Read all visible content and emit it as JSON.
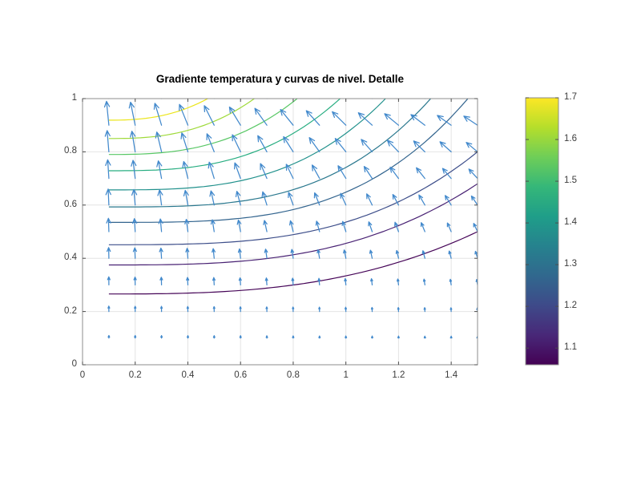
{
  "figure": {
    "background": "#ffffff"
  },
  "chart_data": {
    "type": "quiver+contour",
    "title": "Gradiente temperatura y curvas de nivel. Detalle",
    "x_range": [
      0,
      1.5
    ],
    "y_range": [
      0,
      1
    ],
    "x_tick_values": [
      0,
      0.2,
      0.4,
      0.6,
      0.8,
      1,
      1.2,
      1.4
    ],
    "x_tick_labels": [
      "0",
      "0.2",
      "0.4",
      "0.6",
      "0.8",
      "1",
      "1.2",
      "1.4"
    ],
    "y_tick_values": [
      0,
      0.2,
      0.4,
      0.6,
      0.8,
      1
    ],
    "y_tick_labels": [
      "0",
      "0.2",
      "0.4",
      "0.6",
      "0.8",
      "1"
    ],
    "grid": true,
    "axis_color": "#8c8c8c",
    "grid_color": "#e4e4e4",
    "tick_color": "#4d4d4d",
    "quiver": {
      "color": "#4289cc",
      "grid_x": {
        "start": 0.1,
        "step": 0.1,
        "count": 15
      },
      "grid_y": {
        "start": 0.1,
        "step": 0.1,
        "count": 10
      },
      "field_model": {
        "description": "temperature-gradient arrows: point upward, tilt left as x grows, magnitude grows with y and shrinks mildly with x",
        "tilt": "theta = atan(1.25*x*y^2) leaning toward -x from vertical",
        "length_px": "L = 34*y*(1-0.22*x)",
        "head_half_angle_deg": 24
      }
    },
    "contours": {
      "x_start": 0.1,
      "lines": [
        {
          "level": 1.08,
          "color": "#450457",
          "y_at_x0": 0.266,
          "x_end": 1.5,
          "y_end": 0.5,
          "exp": 2.8
        },
        {
          "level": 1.15,
          "color": "#482173",
          "y_at_x0": 0.375,
          "x_end": 1.5,
          "y_end": 0.68,
          "exp": 3.0
        },
        {
          "level": 1.21,
          "color": "#3d4e8a",
          "y_at_x0": 0.451,
          "x_end": 1.5,
          "y_end": 0.8,
          "exp": 3.2
        },
        {
          "level": 1.27,
          "color": "#32648e",
          "y_at_x0": 0.535,
          "x_end": 1.48,
          "y_end": 1.02,
          "exp": 3.4
        },
        {
          "level": 1.34,
          "color": "#2a788e",
          "y_at_x0": 0.593,
          "x_end": 1.34,
          "y_end": 1.02,
          "exp": 3.3
        },
        {
          "level": 1.4,
          "color": "#21918c",
          "y_at_x0": 0.657,
          "x_end": 1.17,
          "y_end": 1.02,
          "exp": 3.1
        },
        {
          "level": 1.46,
          "color": "#27ad81",
          "y_at_x0": 0.729,
          "x_end": 1.0,
          "y_end": 1.02,
          "exp": 2.9
        },
        {
          "level": 1.53,
          "color": "#58c765",
          "y_at_x0": 0.79,
          "x_end": 0.84,
          "y_end": 1.02,
          "exp": 2.7
        },
        {
          "level": 1.59,
          "color": "#9fda3a",
          "y_at_x0": 0.85,
          "x_end": 0.68,
          "y_end": 1.02,
          "exp": 2.6
        },
        {
          "level": 1.66,
          "color": "#ebe51a",
          "y_at_x0": 0.919,
          "x_end": 0.51,
          "y_end": 1.02,
          "exp": 2.5
        }
      ]
    },
    "colorbar": {
      "range": [
        1.06,
        1.7
      ],
      "tick_values": [
        1.1,
        1.2,
        1.3,
        1.4,
        1.5,
        1.6,
        1.7
      ],
      "tick_labels": [
        "1.1",
        "1.2",
        "1.3",
        "1.4",
        "1.5",
        "1.6",
        "1.7"
      ],
      "colormap": "viridis",
      "stops": [
        "#440154",
        "#482878",
        "#3e4a89",
        "#31688e",
        "#26828e",
        "#1f9e89",
        "#35b779",
        "#6ece58",
        "#b5de2b",
        "#fde725"
      ]
    }
  }
}
